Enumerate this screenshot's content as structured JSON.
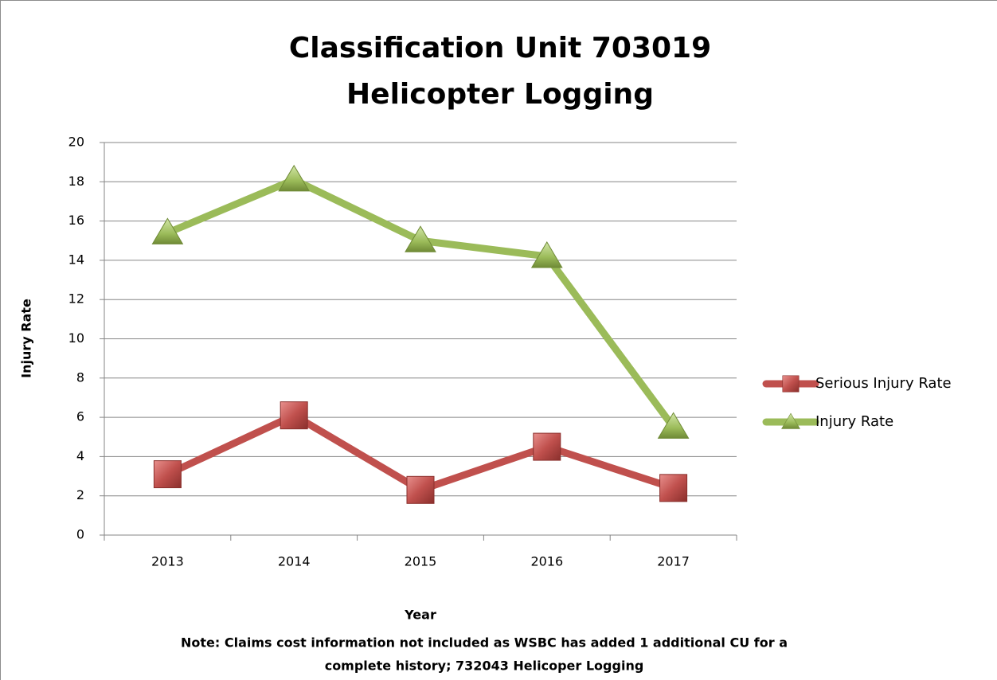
{
  "chart_data": {
    "type": "line",
    "title": [
      "Classification Unit 703019",
      "Helicopter Logging"
    ],
    "x_label": "Year",
    "y_label": "Injury Rate",
    "note": [
      "Note:  Claims cost information not included as WSBC has added 1 additional CU for a",
      "complete history; 732043 Helicoper Logging"
    ],
    "categories": [
      "2013",
      "2014",
      "2015",
      "2016",
      "2017"
    ],
    "series": [
      {
        "name": "Serious Injury Rate",
        "color": "#c0504d",
        "marker": "square",
        "values": [
          3.1,
          6.1,
          2.3,
          4.5,
          2.4
        ]
      },
      {
        "name": "Injury Rate",
        "color": "#9bbb59",
        "marker": "triangle",
        "values": [
          15.4,
          18.1,
          15.0,
          14.2,
          5.5
        ]
      }
    ],
    "ylim": [
      0,
      20
    ],
    "yticks": [
      0,
      2,
      4,
      6,
      8,
      10,
      12,
      14,
      16,
      18,
      20
    ],
    "grid": true,
    "legend": "right"
  }
}
